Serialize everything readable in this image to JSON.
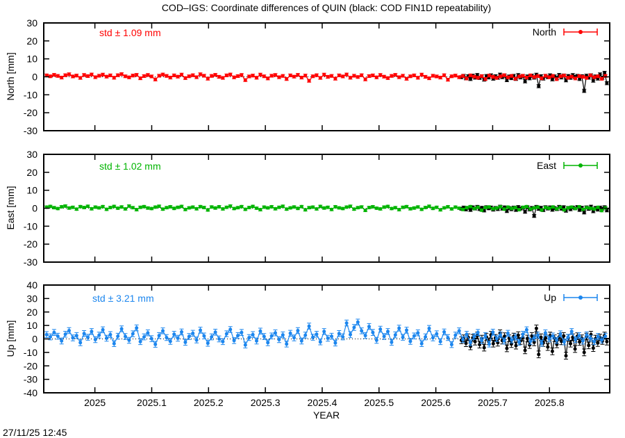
{
  "title": "COD–IGS: Coordinate differences of QUIN (black: COD FIN1D repeatability)",
  "timestamp": "27/11/25 12:45",
  "xlabel": "YEAR",
  "xlim": [
    2024.91,
    2025.906
  ],
  "xticks": {
    "values": [
      2025,
      2025.1,
      2025.2,
      2025.3,
      2025.4,
      2025.5,
      2025.6,
      2025.7,
      2025.8
    ],
    "labels": [
      "2025",
      "2025.1",
      "2025.2",
      "2025.3",
      "2025.4",
      "2025.5",
      "2025.6",
      "2025.7",
      "2025.8"
    ]
  },
  "chart_data": [
    {
      "type": "line",
      "name": "north",
      "ylabel": "North [mm]",
      "ylim": [
        -30,
        30
      ],
      "yticks": [
        30,
        20,
        10,
        0,
        -10,
        -20,
        -30
      ],
      "std_label": "std ± 1.09 mm",
      "legend": "North",
      "color": "#ff0000",
      "series": {
        "x_start": 2024.915,
        "x_step": 0.0066,
        "err": 0.8,
        "values": [
          0.8,
          0.3,
          1.1,
          0.5,
          -0.4,
          0.9,
          1.4,
          0.2,
          0.7,
          -0.6,
          1.0,
          0.4,
          1.3,
          -0.2,
          0.6,
          1.2,
          0.1,
          0.8,
          -0.5,
          0.9,
          1.5,
          0.3,
          -0.3,
          0.7,
          1.1,
          -0.8,
          0.4,
          1.0,
          0.2,
          -1.5,
          0.6,
          1.3,
          0.5,
          -0.4,
          0.8,
          0.1,
          1.2,
          -0.7,
          0.3,
          0.9,
          -0.2,
          1.4,
          0.6,
          -1.0,
          0.5,
          1.1,
          0.0,
          -0.6,
          0.8,
          1.3,
          -0.3,
          0.4,
          1.0,
          -1.8,
          0.2,
          0.7,
          -0.5,
          1.2,
          0.3,
          -0.9,
          0.6,
          1.0,
          -0.2,
          0.5,
          -1.2,
          0.8,
          0.1,
          1.1,
          -0.4,
          0.7,
          -2.2,
          0.3,
          0.9,
          -0.6,
          1.2,
          0.0,
          0.5,
          -1.0,
          0.8,
          0.2,
          1.3,
          -0.5,
          0.6,
          -0.1,
          0.9,
          -1.4,
          0.4,
          0.8,
          -0.3,
          1.0,
          0.1,
          -0.7,
          0.5,
          1.1,
          -0.2,
          0.6,
          -1.1,
          0.3,
          0.8,
          -0.5,
          1.2,
          0.0,
          -0.8,
          0.6,
          0.2,
          -0.4,
          0.9,
          -1.6,
          0.3,
          0.7,
          -0.2,
          0.5,
          -0.9,
          0.8,
          0.1,
          -0.5,
          0.4,
          -1.2,
          0.7,
          0.0,
          -0.6,
          0.3,
          0.9,
          -0.3,
          0.5,
          -1.0,
          0.2,
          0.6,
          -0.4,
          0.8,
          -0.1,
          0.4,
          -0.8,
          0.6,
          -0.2,
          0.5,
          -1.3,
          0.3,
          0.7,
          -0.5,
          0.1,
          -0.9,
          0.4,
          0.0,
          -0.6,
          0.8,
          -0.2,
          0.3,
          -1.1,
          0.5
        ]
      },
      "black_series": {
        "name": "COD FIN1D repeatability",
        "color": "#000000",
        "x_start": 2025.645,
        "x_step": 0.004,
        "err": 0.9,
        "values": [
          -0.2,
          0.5,
          -0.8,
          0.3,
          -1.2,
          0.6,
          -0.4,
          1.0,
          -0.6,
          0.2,
          -1.5,
          0.4,
          -0.3,
          0.8,
          -1.0,
          0.3,
          -0.5,
          1.2,
          -0.2,
          0.6,
          -1.8,
          0.1,
          -0.7,
          0.5,
          -1.1,
          0.9,
          -0.3,
          0.4,
          -2.5,
          0.2,
          -0.8,
          0.6,
          -0.4,
          1.1,
          -5.2,
          0.3,
          -0.9,
          0.5,
          -0.2,
          0.8,
          -1.4,
          0.2,
          -0.6,
          1.0,
          -0.3,
          0.7,
          -1.9,
          0.4,
          -0.5,
          0.9,
          -0.1,
          0.5,
          -1.2,
          0.3,
          -7.8,
          0.6,
          -0.4,
          0.8,
          -2.1,
          0.2,
          -0.9,
          1.3,
          -0.5,
          2.2,
          -3.5
        ]
      }
    },
    {
      "type": "line",
      "name": "east",
      "ylabel": "East [mm]",
      "ylim": [
        -30,
        30
      ],
      "yticks": [
        30,
        20,
        10,
        0,
        -10,
        -20,
        -30
      ],
      "std_label": "std ± 1.02 mm",
      "legend": "East",
      "color": "#00b400",
      "series": {
        "x_start": 2024.915,
        "x_step": 0.0066,
        "err": 0.7,
        "values": [
          0.6,
          1.0,
          0.3,
          -0.2,
          0.8,
          1.2,
          0.1,
          0.5,
          -0.5,
          0.9,
          0.4,
          1.1,
          -0.3,
          0.6,
          0.2,
          0.9,
          -0.6,
          0.4,
          1.0,
          0.0,
          0.7,
          -0.4,
          1.2,
          0.3,
          -0.8,
          0.5,
          0.9,
          0.1,
          -0.2,
          0.6,
          1.1,
          -0.5,
          0.3,
          0.8,
          -0.1,
          0.5,
          1.0,
          -0.7,
          0.2,
          0.6,
          -0.3,
          0.9,
          0.4,
          -1.0,
          0.7,
          0.1,
          0.8,
          -0.4,
          0.5,
          1.2,
          -0.2,
          0.3,
          0.9,
          -0.6,
          0.4,
          1.0,
          0.0,
          -0.8,
          0.6,
          0.2,
          0.8,
          -0.3,
          0.5,
          1.1,
          -0.5,
          0.2,
          0.7,
          -0.1,
          0.9,
          -0.9,
          0.3,
          0.6,
          -0.4,
          1.0,
          0.1,
          0.5,
          -0.7,
          0.8,
          0.2,
          -0.2,
          0.6,
          1.1,
          -0.5,
          0.3,
          0.7,
          -1.2,
          0.4,
          0.8,
          0.0,
          -0.4,
          0.6,
          1.0,
          -0.2,
          0.3,
          -0.8,
          0.5,
          0.9,
          -0.3,
          0.1,
          0.7,
          -0.6,
          0.4,
          1.1,
          -0.1,
          0.5,
          -0.9,
          0.2,
          0.8,
          -0.4,
          0.6,
          0.0,
          -0.7,
          0.3,
          0.9,
          -0.2,
          0.5,
          -1.1,
          0.4,
          0.7,
          -0.3,
          0.1,
          0.8,
          -0.5,
          0.6,
          -0.1,
          0.3,
          -0.8,
          0.5,
          0.9,
          -0.4,
          0.2,
          0.6,
          -1.0,
          0.4,
          0.0,
          0.7,
          -0.3,
          0.5,
          -0.9,
          0.2,
          0.6,
          -0.2,
          0.8,
          -0.6,
          0.3,
          0.0,
          -0.4,
          0.5,
          -1.3,
          0.2
        ]
      },
      "black_series": {
        "name": "COD FIN1D repeatability",
        "color": "#000000",
        "x_start": 2025.645,
        "x_step": 0.004,
        "err": 0.8,
        "values": [
          -0.3,
          0.4,
          -0.7,
          0.2,
          -1.0,
          0.5,
          -0.2,
          0.8,
          -0.5,
          0.3,
          -1.3,
          0.6,
          -0.1,
          0.4,
          -0.8,
          0.2,
          -0.5,
          0.9,
          -0.3,
          0.5,
          -1.6,
          0.1,
          -0.6,
          0.4,
          -1.0,
          0.7,
          -0.2,
          0.3,
          -2.0,
          0.5,
          -0.7,
          0.2,
          -4.3,
          0.8,
          -0.4,
          0.3,
          -1.1,
          0.6,
          -0.2,
          0.5,
          -0.9,
          0.1,
          -0.5,
          0.8,
          -0.3,
          0.6,
          -1.4,
          0.2,
          -0.6,
          0.4,
          -0.1,
          0.7,
          -1.0,
          0.3,
          -2.4,
          0.5,
          -0.4,
          0.9,
          -1.7,
          0.2,
          -0.8,
          0.4,
          -0.3,
          0.6,
          -1.2
        ]
      }
    },
    {
      "type": "line",
      "name": "up",
      "ylabel": "Up [mm]",
      "ylim": [
        -40,
        40
      ],
      "yticks": [
        40,
        30,
        20,
        10,
        0,
        -10,
        -20,
        -30,
        -40
      ],
      "std_label": "std ± 3.21 mm",
      "legend": "Up",
      "color": "#1c86ee",
      "series": {
        "x_start": 2024.915,
        "x_step": 0.0066,
        "err": 2.2,
        "values": [
          3.2,
          1.5,
          4.8,
          2.0,
          -1.5,
          3.5,
          6.2,
          0.8,
          2.5,
          -2.8,
          4.0,
          1.2,
          5.5,
          -0.5,
          2.8,
          6.8,
          0.5,
          3.2,
          -3.5,
          2.0,
          7.5,
          1.8,
          -1.0,
          3.8,
          8.2,
          -2.0,
          1.5,
          4.5,
          0.2,
          -4.0,
          2.5,
          6.0,
          1.0,
          -1.8,
          3.5,
          0.5,
          5.2,
          -2.5,
          1.8,
          4.2,
          -0.8,
          6.5,
          2.2,
          -3.2,
          1.5,
          5.0,
          0.0,
          -2.0,
          3.8,
          7.0,
          -1.2,
          2.5,
          4.8,
          -4.5,
          1.0,
          3.2,
          -1.5,
          5.8,
          1.8,
          -2.8,
          2.2,
          4.5,
          -0.5,
          3.0,
          -3.8,
          4.2,
          0.8,
          6.2,
          -1.5,
          2.8,
          9.5,
          1.2,
          3.5,
          -2.2,
          5.5,
          0.5,
          2.0,
          -3.0,
          4.0,
          1.5,
          11.8,
          3.2,
          8.5,
          12.5,
          6.0,
          2.5,
          9.2,
          4.8,
          -1.0,
          7.2,
          1.8,
          5.5,
          -2.5,
          3.0,
          8.0,
          1.2,
          6.5,
          -1.8,
          2.2,
          4.5,
          -3.5,
          1.5,
          7.8,
          0.8,
          3.8,
          -2.0,
          5.2,
          1.0,
          -4.2,
          2.8,
          6.0,
          -0.5,
          3.5,
          -2.8,
          1.8,
          4.8,
          -1.2,
          2.5,
          -3.8,
          5.0,
          0.2,
          3.0,
          -1.5,
          4.2,
          -0.8,
          1.5,
          -2.5,
          3.5,
          6.8,
          -1.8,
          0.8,
          2.8,
          -3.2,
          4.5,
          0.0,
          2.2,
          -1.0,
          3.8,
          -2.2,
          1.2,
          5.5,
          -0.5,
          2.5,
          -1.5,
          3.0,
          0.5,
          -2.0,
          1.8,
          -0.8,
          2.0
        ]
      },
      "black_series": {
        "name": "COD FIN1D repeatability",
        "color": "#000000",
        "x_start": 2025.645,
        "x_step": 0.004,
        "err": 2.5,
        "values": [
          -1.0,
          0.5,
          -3.2,
          1.2,
          -5.5,
          0.8,
          -2.0,
          2.5,
          -4.2,
          0.2,
          -6.5,
          1.5,
          -1.8,
          3.0,
          -3.5,
          0.8,
          -2.8,
          4.2,
          -1.2,
          2.0,
          -7.0,
          0.5,
          -3.8,
          1.8,
          -5.0,
          2.8,
          -1.5,
          1.0,
          -8.5,
          0.3,
          -4.5,
          2.2,
          -2.5,
          7.8,
          -11.5,
          1.2,
          -3.0,
          0.8,
          -6.0,
          2.5,
          -9.2,
          0.5,
          -4.0,
          1.5,
          -1.8,
          2.2,
          -12.5,
          0.8,
          -3.5,
          1.2,
          -7.5,
          2.0,
          -2.2,
          0.5,
          -10.0,
          1.8,
          -4.8,
          3.2,
          -6.8,
          0.2,
          -3.0,
          1.0,
          -1.5,
          2.5,
          -2.0
        ]
      }
    }
  ]
}
